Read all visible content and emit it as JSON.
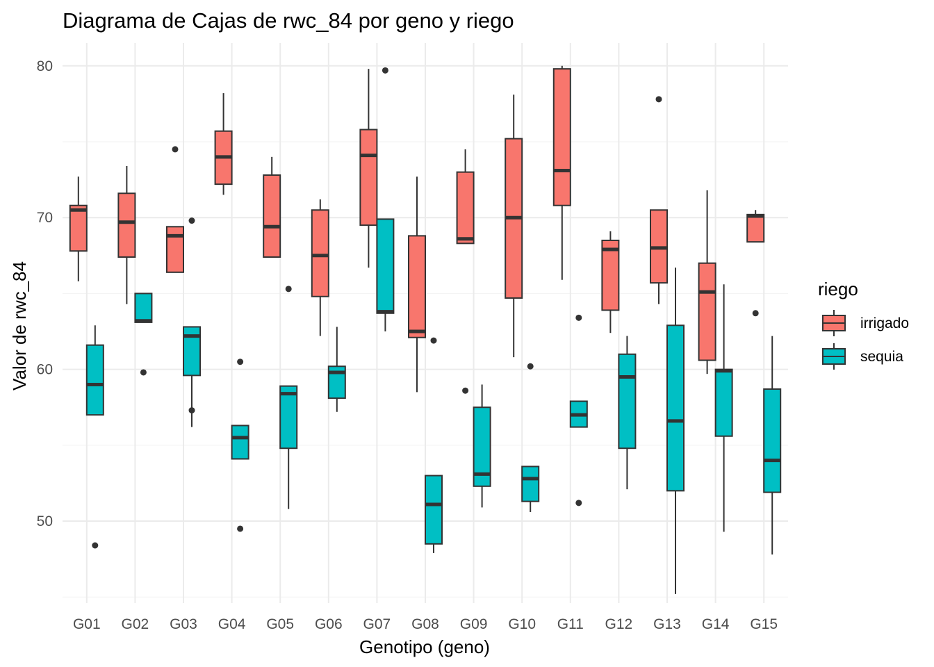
{
  "chart_data": {
    "type": "boxplot",
    "title": "Diagrama de Cajas de rwc_84 por geno y riego",
    "xlabel": "Genotipo (geno)",
    "ylabel": "Valor de rwc_84",
    "ylim": [
      44.6,
      81.5
    ],
    "y_ticks": [
      50,
      60,
      70,
      80
    ],
    "y_minor_ticks": [
      45,
      55,
      65,
      75
    ],
    "grid": true,
    "legend": {
      "title": "riego",
      "placement": "right",
      "entries": [
        {
          "label": "irrigado",
          "color": "#F8766D"
        },
        {
          "label": "sequia",
          "color": "#00BFC4"
        }
      ]
    },
    "categories": [
      "G01",
      "G02",
      "G03",
      "G04",
      "G05",
      "G06",
      "G07",
      "G08",
      "G09",
      "G10",
      "G11",
      "G12",
      "G13",
      "G14",
      "G15"
    ],
    "series": [
      {
        "name": "irrigado",
        "color": "#F8766D",
        "boxes": [
          {
            "lower_whisker": 65.8,
            "q1": 67.8,
            "median": 70.5,
            "q3": 70.8,
            "upper_whisker": 72.7,
            "outliers": []
          },
          {
            "lower_whisker": 64.3,
            "q1": 67.4,
            "median": 69.7,
            "q3": 71.6,
            "upper_whisker": 73.4,
            "outliers": []
          },
          {
            "lower_whisker": 66.4,
            "q1": 66.4,
            "median": 68.8,
            "q3": 69.4,
            "upper_whisker": 69.4,
            "outliers": [
              74.5
            ]
          },
          {
            "lower_whisker": 71.5,
            "q1": 72.2,
            "median": 74.0,
            "q3": 75.7,
            "upper_whisker": 78.2,
            "outliers": []
          },
          {
            "lower_whisker": 67.4,
            "q1": 67.4,
            "median": 69.4,
            "q3": 72.8,
            "upper_whisker": 74.0,
            "outliers": []
          },
          {
            "lower_whisker": 62.2,
            "q1": 64.8,
            "median": 67.5,
            "q3": 70.5,
            "upper_whisker": 71.2,
            "outliers": []
          },
          {
            "lower_whisker": 66.7,
            "q1": 69.5,
            "median": 74.1,
            "q3": 75.8,
            "upper_whisker": 79.8,
            "outliers": []
          },
          {
            "lower_whisker": 58.5,
            "q1": 62.1,
            "median": 62.5,
            "q3": 68.8,
            "upper_whisker": 72.7,
            "outliers": []
          },
          {
            "lower_whisker": 68.3,
            "q1": 68.3,
            "median": 68.6,
            "q3": 73.0,
            "upper_whisker": 74.5,
            "outliers": [
              58.6
            ]
          },
          {
            "lower_whisker": 60.8,
            "q1": 64.7,
            "median": 70.0,
            "q3": 75.2,
            "upper_whisker": 78.1,
            "outliers": []
          },
          {
            "lower_whisker": 65.9,
            "q1": 70.8,
            "median": 73.1,
            "q3": 79.8,
            "upper_whisker": 80.0,
            "outliers": []
          },
          {
            "lower_whisker": 62.4,
            "q1": 63.9,
            "median": 67.9,
            "q3": 68.5,
            "upper_whisker": 69.1,
            "outliers": []
          },
          {
            "lower_whisker": 64.3,
            "q1": 65.7,
            "median": 68.0,
            "q3": 70.5,
            "upper_whisker": 70.5,
            "outliers": [
              77.8
            ]
          },
          {
            "lower_whisker": 59.7,
            "q1": 60.6,
            "median": 65.1,
            "q3": 67.0,
            "upper_whisker": 71.8,
            "outliers": []
          },
          {
            "lower_whisker": 68.4,
            "q1": 68.4,
            "median": 70.1,
            "q3": 70.2,
            "upper_whisker": 70.5,
            "outliers": [
              63.7
            ]
          }
        ]
      },
      {
        "name": "sequia",
        "color": "#00BFC4",
        "boxes": [
          {
            "lower_whisker": 57.0,
            "q1": 57.0,
            "median": 59.0,
            "q3": 61.6,
            "upper_whisker": 62.9,
            "outliers": [
              48.4
            ]
          },
          {
            "lower_whisker": 63.1,
            "q1": 63.1,
            "median": 63.2,
            "q3": 65.0,
            "upper_whisker": 65.0,
            "outliers": [
              59.8
            ]
          },
          {
            "lower_whisker": 56.2,
            "q1": 59.6,
            "median": 62.2,
            "q3": 62.8,
            "upper_whisker": 62.8,
            "outliers": [
              69.8,
              57.3
            ]
          },
          {
            "lower_whisker": 54.1,
            "q1": 54.1,
            "median": 55.5,
            "q3": 56.3,
            "upper_whisker": 56.3,
            "outliers": [
              60.5,
              49.5
            ]
          },
          {
            "lower_whisker": 50.8,
            "q1": 54.8,
            "median": 58.4,
            "q3": 58.9,
            "upper_whisker": 58.9,
            "outliers": [
              65.3
            ]
          },
          {
            "lower_whisker": 57.2,
            "q1": 58.1,
            "median": 59.8,
            "q3": 60.2,
            "upper_whisker": 62.8,
            "outliers": []
          },
          {
            "lower_whisker": 62.5,
            "q1": 63.7,
            "median": 63.8,
            "q3": 69.9,
            "upper_whisker": 69.9,
            "outliers": [
              79.7
            ]
          },
          {
            "lower_whisker": 47.9,
            "q1": 48.5,
            "median": 51.1,
            "q3": 53.0,
            "upper_whisker": 53.0,
            "outliers": [
              61.9
            ]
          },
          {
            "lower_whisker": 50.9,
            "q1": 52.3,
            "median": 53.1,
            "q3": 57.5,
            "upper_whisker": 59.0,
            "outliers": []
          },
          {
            "lower_whisker": 50.6,
            "q1": 51.3,
            "median": 52.8,
            "q3": 53.6,
            "upper_whisker": 53.6,
            "outliers": [
              60.2
            ]
          },
          {
            "lower_whisker": 56.2,
            "q1": 56.2,
            "median": 57.0,
            "q3": 57.9,
            "upper_whisker": 57.9,
            "outliers": [
              63.4,
              51.2
            ]
          },
          {
            "lower_whisker": 52.1,
            "q1": 54.8,
            "median": 59.5,
            "q3": 61.0,
            "upper_whisker": 62.2,
            "outliers": []
          },
          {
            "lower_whisker": 45.2,
            "q1": 52.0,
            "median": 56.6,
            "q3": 62.9,
            "upper_whisker": 66.7,
            "outliers": []
          },
          {
            "lower_whisker": 49.3,
            "q1": 55.6,
            "median": 59.9,
            "q3": 60.0,
            "upper_whisker": 65.6,
            "outliers": []
          },
          {
            "lower_whisker": 47.8,
            "q1": 51.9,
            "median": 54.0,
            "q3": 58.7,
            "upper_whisker": 62.2,
            "outliers": []
          }
        ]
      }
    ]
  }
}
